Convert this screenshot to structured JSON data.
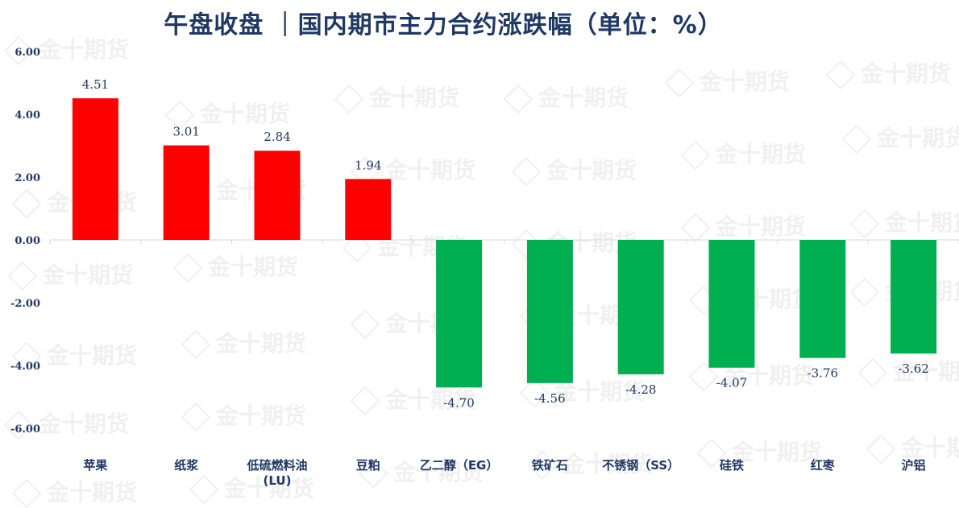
{
  "chart_data": {
    "type": "bar",
    "title": "午盘收盘 ｜国内期市主力合约涨跌幅（单位：%）",
    "categories": [
      "苹果",
      "纸浆",
      "低硫燃料油(LU)",
      "豆粕",
      "乙二醇（EG）",
      "铁矿石",
      "不锈钢（SS）",
      "硅铁",
      "红枣",
      "沪铝"
    ],
    "category_lines": [
      [
        "苹果"
      ],
      [
        "纸浆"
      ],
      [
        "低硫燃料油",
        "(LU)"
      ],
      [
        "豆粕"
      ],
      [
        "乙二醇（EG）"
      ],
      [
        "铁矿石"
      ],
      [
        "不锈钢（SS）"
      ],
      [
        "硅铁"
      ],
      [
        "红枣"
      ],
      [
        "沪铝"
      ]
    ],
    "values": [
      4.51,
      3.01,
      2.84,
      1.94,
      -4.7,
      -4.56,
      -4.28,
      -4.07,
      -3.76,
      -3.62
    ],
    "value_labels": [
      "4.51",
      "3.01",
      "2.84",
      "1.94",
      "-4.70",
      "-4.56",
      "-4.28",
      "-4.07",
      "-3.76",
      "-3.62"
    ],
    "ylim": [
      -6,
      6
    ],
    "yticks": [
      6,
      4,
      2,
      0,
      -2,
      -4,
      -6
    ],
    "ytick_labels": [
      "6.00",
      "4.00",
      "2.00",
      "0.00",
      "-2.00",
      "-4.00",
      "-6.00"
    ],
    "colors": {
      "positive": "#ff0000",
      "negative": "#00b050",
      "text": "#1f3864"
    },
    "watermark": "金十期货"
  }
}
